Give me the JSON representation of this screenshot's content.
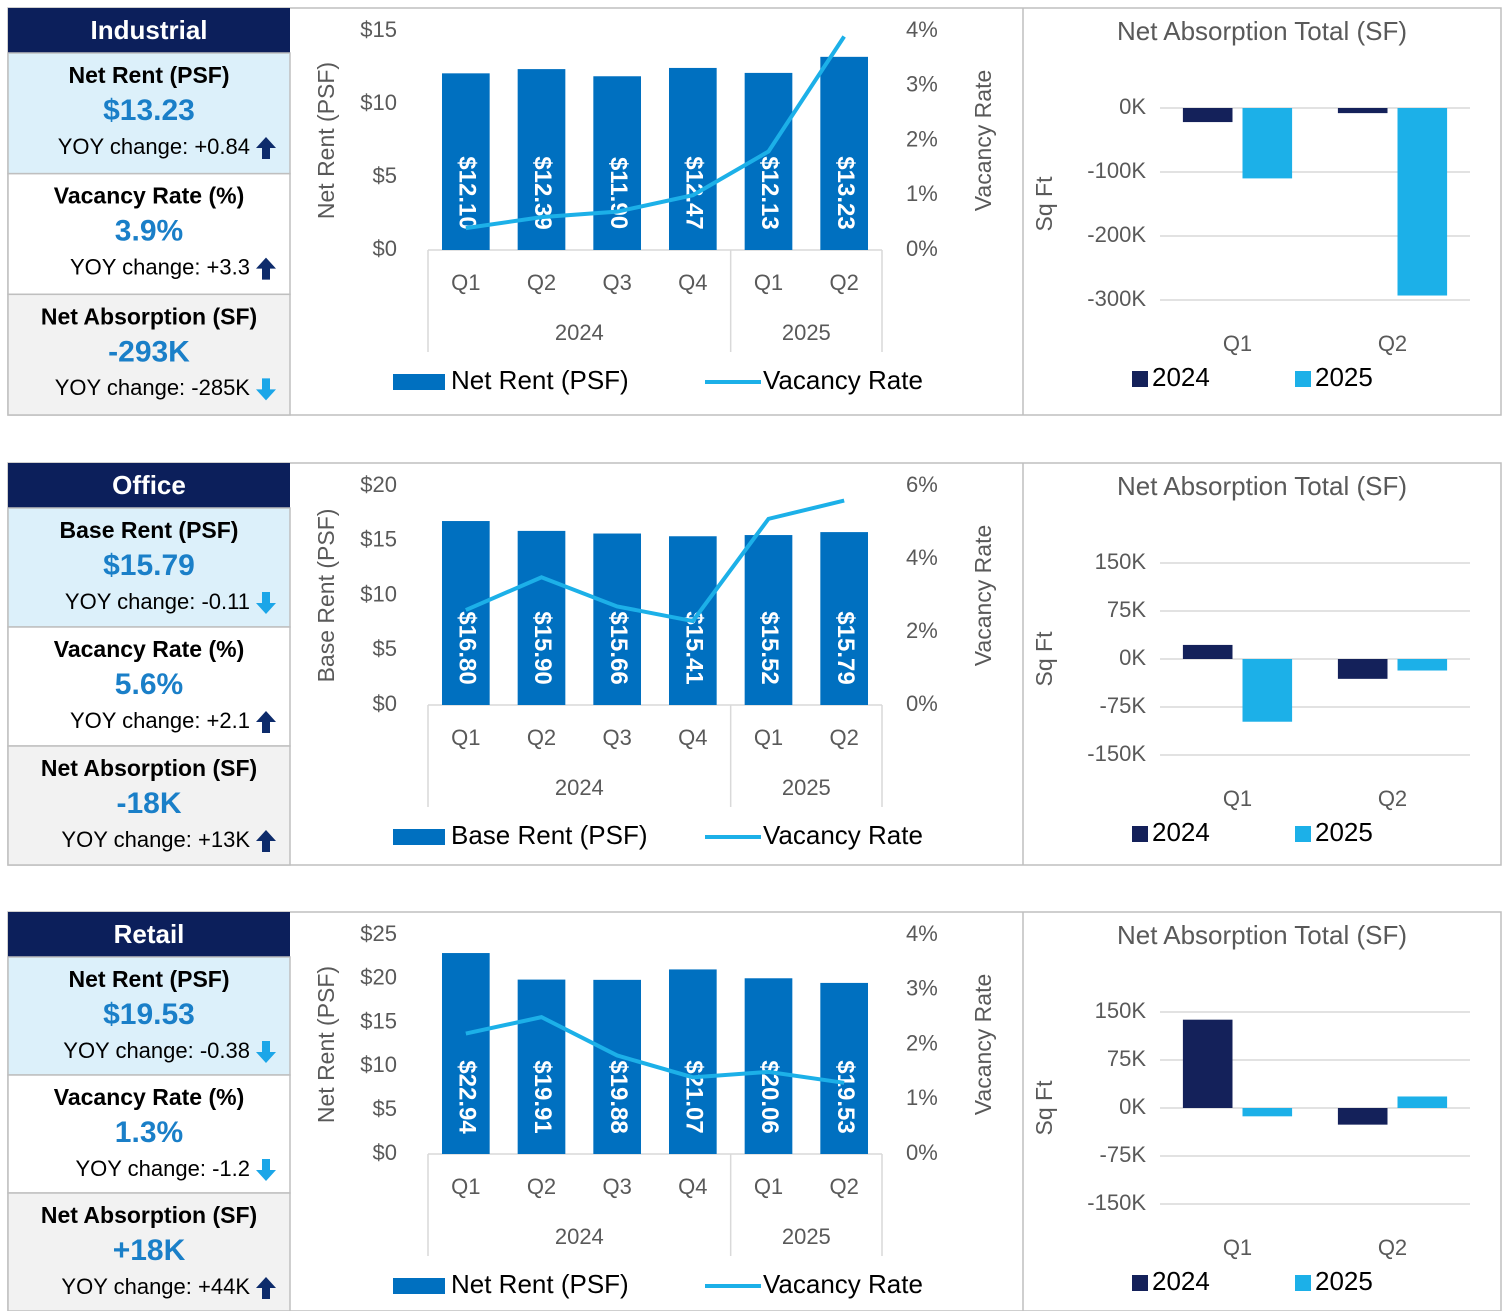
{
  "panels": [
    {
      "title": "Industrial",
      "stats": [
        {
          "label": "Net Rent (PSF)",
          "value": "$13.23",
          "change": "YOY change: +0.84",
          "arrow": "up"
        },
        {
          "label": "Vacancy Rate (%)",
          "value": "3.9%",
          "change": "YOY change: +3.3",
          "arrow": "up"
        },
        {
          "label": "Net Absorption (SF)",
          "value": "-293K",
          "change": "YOY change: -285K",
          "arrow": "down"
        }
      ]
    },
    {
      "title": "Office",
      "stats": [
        {
          "label": "Base Rent (PSF)",
          "value": "$15.79",
          "change": "YOY change: -0.11",
          "arrow": "down"
        },
        {
          "label": "Vacancy Rate (%)",
          "value": "5.6%",
          "change": "YOY change: +2.1",
          "arrow": "up"
        },
        {
          "label": "Net Absorption (SF)",
          "value": "-18K",
          "change": "YOY change: +13K",
          "arrow": "up"
        }
      ]
    },
    {
      "title": "Retail",
      "stats": [
        {
          "label": "Net Rent (PSF)",
          "value": "$19.53",
          "change": "YOY change: -0.38",
          "arrow": "down"
        },
        {
          "label": "Vacancy Rate (%)",
          "value": "1.3%",
          "change": "YOY change: -1.2",
          "arrow": "down"
        },
        {
          "label": "Net Absorption (SF)",
          "value": "+18K",
          "change": "YOY change: +44K",
          "arrow": "up"
        }
      ]
    }
  ],
  "chart_data": [
    {
      "type": "combo",
      "y_label": "Net Rent (PSF)",
      "y2_label": "Vacancy Rate",
      "categories": [
        "Q1",
        "Q2",
        "Q3",
        "Q4",
        "Q1",
        "Q2"
      ],
      "groups": [
        {
          "label": "2024",
          "span": 4
        },
        {
          "label": "2025",
          "span": 2
        }
      ],
      "ylim": [
        0,
        15
      ],
      "yticks": [
        {
          "value": 0,
          "label": "$0"
        },
        {
          "value": 5,
          "label": "$5"
        },
        {
          "value": 10,
          "label": "$10"
        },
        {
          "value": 15,
          "label": "$15"
        }
      ],
      "y2lim": [
        0,
        4
      ],
      "y2ticks": [
        {
          "value": 0,
          "label": "0%"
        },
        {
          "value": 1,
          "label": "1%"
        },
        {
          "value": 2,
          "label": "2%"
        },
        {
          "value": 3,
          "label": "3%"
        },
        {
          "value": 4,
          "label": "4%"
        }
      ],
      "series": [
        {
          "name": "Net Rent (PSF)",
          "type": "bar",
          "color": "#0070c0",
          "values": [
            12.1,
            12.39,
            11.9,
            12.47,
            12.13,
            13.23
          ],
          "value_labels": [
            "$12.10",
            "$12.39",
            "$11.90",
            "$12.47",
            "$12.13",
            "$13.23"
          ]
        },
        {
          "name": "Vacancy Rate",
          "type": "line",
          "axis": "y2",
          "color": "#1cb0e8",
          "values": [
            0.4,
            0.6,
            0.7,
            1.0,
            1.8,
            3.9
          ]
        }
      ]
    },
    {
      "type": "bar",
      "title": "Net Absorption Total (SF)",
      "y_label": "Sq Ft",
      "categories": [
        "Q1",
        "Q2"
      ],
      "grid": true,
      "ylim": [
        -300000,
        0
      ],
      "yticks": [
        {
          "value": 0,
          "label": "0K"
        },
        {
          "value": -100000,
          "label": "-100K"
        },
        {
          "value": -200000,
          "label": "-200K"
        },
        {
          "value": -300000,
          "label": "-300K"
        }
      ],
      "series": [
        {
          "name": "2024",
          "color": "#14215a",
          "values": [
            -22000,
            -8000
          ]
        },
        {
          "name": "2025",
          "color": "#1cb0e8",
          "values": [
            -110000,
            -293000
          ]
        }
      ]
    },
    {
      "type": "combo",
      "y_label": "Base Rent (PSF)",
      "y2_label": "Vacancy Rate",
      "categories": [
        "Q1",
        "Q2",
        "Q3",
        "Q4",
        "Q1",
        "Q2"
      ],
      "groups": [
        {
          "label": "2024",
          "span": 4
        },
        {
          "label": "2025",
          "span": 2
        }
      ],
      "ylim": [
        0,
        20
      ],
      "yticks": [
        {
          "value": 0,
          "label": "$0"
        },
        {
          "value": 5,
          "label": "$5"
        },
        {
          "value": 10,
          "label": "$10"
        },
        {
          "value": 15,
          "label": "$15"
        },
        {
          "value": 20,
          "label": "$20"
        }
      ],
      "y2lim": [
        0,
        6
      ],
      "y2ticks": [
        {
          "value": 0,
          "label": "0%"
        },
        {
          "value": 2,
          "label": "2%"
        },
        {
          "value": 4,
          "label": "4%"
        },
        {
          "value": 6,
          "label": "6%"
        }
      ],
      "series": [
        {
          "name": "Base Rent (PSF)",
          "type": "bar",
          "color": "#0070c0",
          "values": [
            16.8,
            15.9,
            15.66,
            15.41,
            15.52,
            15.79
          ],
          "value_labels": [
            "$16.80",
            "$15.90",
            "$15.66",
            "$15.41",
            "$15.52",
            "$15.79"
          ]
        },
        {
          "name": "Vacancy Rate",
          "type": "line",
          "axis": "y2",
          "color": "#1cb0e8",
          "values": [
            2.6,
            3.5,
            2.7,
            2.3,
            5.1,
            5.6
          ]
        }
      ]
    },
    {
      "type": "bar",
      "title": "Net Absorption Total (SF)",
      "y_label": "Sq Ft",
      "categories": [
        "Q1",
        "Q2"
      ],
      "grid": true,
      "ylim": [
        -150000,
        150000
      ],
      "yticks": [
        {
          "value": 150000,
          "label": "150K"
        },
        {
          "value": 75000,
          "label": "75K"
        },
        {
          "value": 0,
          "label": "0K"
        },
        {
          "value": -75000,
          "label": "-75K"
        },
        {
          "value": -150000,
          "label": "-150K"
        }
      ],
      "series": [
        {
          "name": "2024",
          "color": "#14215a",
          "values": [
            22000,
            -31000
          ]
        },
        {
          "name": "2025",
          "color": "#1cb0e8",
          "values": [
            -98000,
            -18000
          ]
        }
      ]
    },
    {
      "type": "combo",
      "y_label": "Net Rent (PSF)",
      "y2_label": "Vacancy Rate",
      "categories": [
        "Q1",
        "Q2",
        "Q3",
        "Q4",
        "Q1",
        "Q2"
      ],
      "groups": [
        {
          "label": "2024",
          "span": 4
        },
        {
          "label": "2025",
          "span": 2
        }
      ],
      "ylim": [
        0,
        25
      ],
      "yticks": [
        {
          "value": 0,
          "label": "$0"
        },
        {
          "value": 5,
          "label": "$5"
        },
        {
          "value": 10,
          "label": "$10"
        },
        {
          "value": 15,
          "label": "$15"
        },
        {
          "value": 20,
          "label": "$20"
        },
        {
          "value": 25,
          "label": "$25"
        }
      ],
      "y2lim": [
        0,
        4
      ],
      "y2ticks": [
        {
          "value": 0,
          "label": "0%"
        },
        {
          "value": 1,
          "label": "1%"
        },
        {
          "value": 2,
          "label": "2%"
        },
        {
          "value": 3,
          "label": "3%"
        },
        {
          "value": 4,
          "label": "4%"
        }
      ],
      "series": [
        {
          "name": "Net Rent (PSF)",
          "type": "bar",
          "color": "#0070c0",
          "values": [
            22.94,
            19.91,
            19.88,
            21.07,
            20.06,
            19.53
          ],
          "value_labels": [
            "$22.94",
            "$19.91",
            "$19.88",
            "$21.07",
            "$20.06",
            "$19.53"
          ]
        },
        {
          "name": "Vacancy Rate",
          "type": "line",
          "axis": "y2",
          "color": "#1cb0e8",
          "values": [
            2.2,
            2.5,
            1.8,
            1.4,
            1.5,
            1.3
          ]
        }
      ]
    },
    {
      "type": "bar",
      "title": "Net Absorption Total (SF)",
      "y_label": "Sq Ft",
      "categories": [
        "Q1",
        "Q2"
      ],
      "grid": true,
      "ylim": [
        -150000,
        150000
      ],
      "yticks": [
        {
          "value": 150000,
          "label": "150K"
        },
        {
          "value": 75000,
          "label": "75K"
        },
        {
          "value": 0,
          "label": "0K"
        },
        {
          "value": -75000,
          "label": "-75K"
        },
        {
          "value": -150000,
          "label": "-150K"
        }
      ],
      "series": [
        {
          "name": "2024",
          "color": "#14215a",
          "values": [
            138000,
            -26000
          ]
        },
        {
          "name": "2025",
          "color": "#1cb0e8",
          "values": [
            -13000,
            18000
          ]
        }
      ]
    }
  ]
}
